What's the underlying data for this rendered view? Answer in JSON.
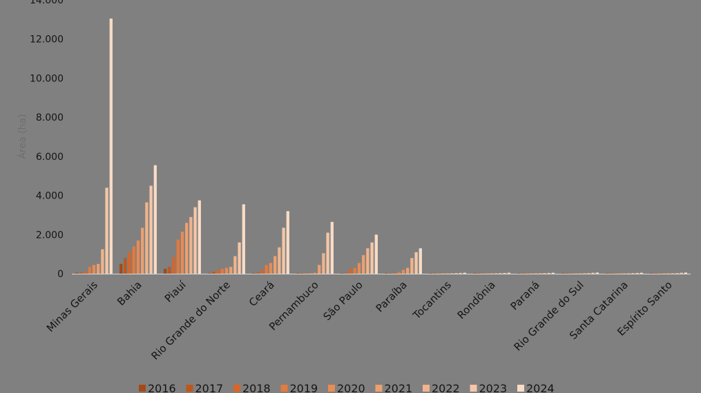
{
  "chart_data": {
    "type": "bar",
    "title": "",
    "xlabel": "",
    "ylabel": "Área (ha)",
    "ylim": [
      0,
      14000
    ],
    "yticks": [
      0,
      2000,
      4000,
      6000,
      8000,
      10000,
      12000,
      14000
    ],
    "ytick_labels": [
      "0",
      "2.000",
      "4.000",
      "6.000",
      "8.000",
      "10.000",
      "12.000",
      "14.000"
    ],
    "grid": false,
    "legend_position": "bottom",
    "categories": [
      "Minas Gerais",
      "Bahia",
      "Piauí",
      "Rio Grande do Norte",
      "Ceará",
      "Pernambuco",
      "São Paulo",
      "Paraíba",
      "Tocantins",
      "Rondônia",
      "Paraná",
      "Rio Grande do Sul",
      "Santa Catarina",
      "Espírito Santo"
    ],
    "series": [
      {
        "name": "2016",
        "color": "#a34a16",
        "values": [
          50,
          500,
          250,
          0,
          0,
          0,
          0,
          0,
          0,
          0,
          0,
          0,
          0,
          0
        ]
      },
      {
        "name": "2017",
        "color": "#bf561a",
        "values": [
          50,
          800,
          350,
          100,
          50,
          0,
          0,
          0,
          0,
          0,
          0,
          0,
          0,
          0
        ]
      },
      {
        "name": "2018",
        "color": "#db6426",
        "values": [
          100,
          1100,
          850,
          200,
          200,
          0,
          250,
          0,
          0,
          0,
          0,
          0,
          0,
          0
        ]
      },
      {
        "name": "2019",
        "color": "#e47a3c",
        "values": [
          350,
          1400,
          1750,
          250,
          450,
          0,
          300,
          100,
          0,
          0,
          0,
          0,
          0,
          0
        ]
      },
      {
        "name": "2020",
        "color": "#e88c55",
        "values": [
          450,
          1700,
          2150,
          300,
          550,
          50,
          550,
          200,
          0,
          0,
          0,
          0,
          0,
          0
        ]
      },
      {
        "name": "2021",
        "color": "#eca070",
        "values": [
          500,
          2350,
          2600,
          350,
          900,
          450,
          950,
          300,
          0,
          0,
          0,
          0,
          0,
          0
        ]
      },
      {
        "name": "2022",
        "color": "#f0b48c",
        "values": [
          1250,
          3650,
          2900,
          900,
          1350,
          1050,
          1300,
          800,
          30,
          20,
          20,
          30,
          20,
          30
        ]
      },
      {
        "name": "2023",
        "color": "#f4c7a8",
        "values": [
          4400,
          4500,
          3400,
          1600,
          2350,
          2100,
          1600,
          1100,
          40,
          40,
          40,
          50,
          40,
          50
        ]
      },
      {
        "name": "2024",
        "color": "#f9dcc6",
        "values": [
          13050,
          5550,
          3750,
          3550,
          3200,
          2650,
          2000,
          1300,
          50,
          50,
          50,
          60,
          50,
          60
        ]
      }
    ]
  }
}
